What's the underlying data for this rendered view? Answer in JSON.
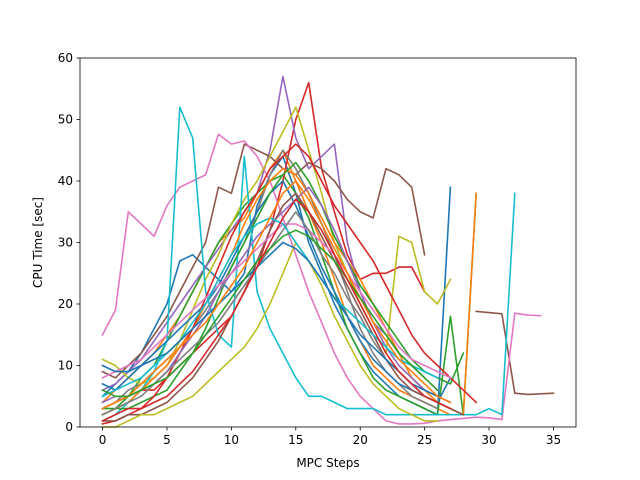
{
  "chart_data": {
    "type": "line",
    "title": "",
    "xlabel": "MPC Steps",
    "ylabel": "CPU Time [sec]",
    "xlim": [
      -1.75,
      36.75
    ],
    "ylim": [
      0,
      60
    ],
    "xticks": [
      0,
      5,
      10,
      15,
      20,
      25,
      30,
      35
    ],
    "yticks": [
      0,
      10,
      20,
      30,
      40,
      50,
      60
    ],
    "grid": false,
    "legend": "none",
    "palette": [
      "#1f77b4",
      "#ff7f0e",
      "#2ca02c",
      "#d62728",
      "#9467bd",
      "#8c564b",
      "#e377c2",
      "#7f7f7f",
      "#bcbd22",
      "#17becf"
    ],
    "series": [
      {
        "values": [
          5,
          7,
          9,
          12,
          16,
          20,
          27,
          28,
          26,
          24,
          22,
          25,
          36,
          41,
          44,
          38,
          30,
          25,
          20,
          16,
          12,
          9,
          7,
          5,
          4,
          3,
          2,
          39
        ]
      },
      {
        "values": [
          4,
          6,
          8,
          10,
          12,
          15,
          18,
          22,
          26,
          30,
          32,
          34,
          38,
          42,
          45,
          40,
          35,
          30,
          24,
          18,
          14,
          10,
          8,
          6,
          5,
          4,
          3,
          2
        ]
      },
      {
        "values": [
          2,
          3,
          5,
          8,
          10,
          14,
          18,
          22,
          26,
          30,
          33,
          36,
          38,
          40,
          41,
          38,
          34,
          28,
          22,
          16,
          12,
          8,
          6,
          5,
          4,
          3,
          2,
          18,
          2,
          38
        ]
      },
      {
        "values": [
          3,
          4,
          5,
          6,
          6,
          8,
          10,
          12,
          14,
          16,
          18,
          22,
          26,
          32,
          40,
          50,
          56,
          42,
          35,
          28,
          24,
          25,
          25,
          26,
          26,
          22
        ]
      },
      {
        "values": [
          6,
          7,
          9,
          11,
          14,
          17,
          20,
          23,
          26,
          29,
          32,
          35,
          38,
          45,
          57,
          47,
          42,
          44,
          46,
          30,
          22,
          17,
          15,
          12,
          10,
          8
        ]
      },
      {
        "values": [
          9,
          8,
          10,
          12,
          15,
          18,
          22,
          26,
          30,
          39,
          38,
          46,
          45,
          44,
          42,
          41,
          43,
          42,
          40,
          37,
          35,
          34,
          42,
          41,
          39,
          28,
          null,
          null,
          null,
          18.8,
          18.6,
          18.4,
          5.5,
          5.3,
          5.4,
          5.5
        ]
      },
      {
        "values": [
          15,
          19,
          35,
          33,
          31,
          36,
          39,
          40,
          41,
          47.6,
          46,
          46.5,
          44,
          40,
          34,
          28,
          22,
          17,
          12,
          8,
          5,
          3,
          1,
          0.5,
          0.5,
          0.6,
          1,
          1.2,
          1.4,
          1.6,
          1.5,
          1.2,
          18.5,
          18.2,
          18.1
        ]
      },
      {
        "values": [
          3,
          4,
          6,
          7,
          9,
          11,
          13,
          16,
          19,
          22,
          26,
          30,
          35,
          41,
          45,
          42,
          38,
          33,
          28,
          22,
          16,
          12,
          9,
          7,
          5,
          4,
          3
        ]
      },
      {
        "values": [
          11,
          10,
          8,
          7,
          8,
          10,
          14,
          19,
          24,
          28,
          33,
          37,
          40,
          44,
          48,
          52,
          45,
          38,
          30,
          25,
          20,
          16,
          12,
          31,
          30,
          22,
          20,
          24
        ]
      },
      {
        "values": [
          1,
          2,
          4,
          6,
          9,
          14,
          52,
          47,
          22,
          15,
          13,
          44,
          22,
          16,
          12,
          8,
          5,
          5,
          4,
          3,
          3,
          3,
          2,
          2,
          2,
          2,
          2,
          2,
          2,
          2,
          3,
          2,
          38
        ]
      },
      {
        "values": [
          7,
          6,
          8,
          10,
          12,
          14,
          16,
          18,
          20,
          23,
          27,
          31,
          35,
          38,
          40,
          36,
          31,
          26,
          22,
          18,
          14,
          11,
          9,
          7,
          6,
          5,
          4,
          8
        ]
      },
      {
        "values": [
          2,
          3,
          4,
          6,
          8,
          10,
          13,
          16,
          20,
          24,
          28,
          33,
          37,
          40,
          42,
          41,
          38,
          34,
          30,
          27,
          24,
          20,
          16,
          12,
          8,
          6,
          4,
          3,
          2,
          38
        ]
      },
      {
        "values": [
          3,
          3,
          3,
          4,
          5,
          6,
          9,
          12,
          16,
          21,
          26,
          30,
          34,
          38,
          41,
          43,
          40,
          36,
          31,
          27,
          23,
          20,
          17,
          14,
          11,
          9,
          8,
          7,
          12
        ]
      },
      {
        "values": [
          0.5,
          1,
          2,
          3,
          5,
          8,
          12,
          16,
          21,
          26,
          31,
          35,
          38,
          42,
          44,
          46,
          44,
          40,
          36,
          33,
          30,
          27,
          23,
          19,
          15,
          12,
          10,
          8,
          6,
          4
        ]
      },
      {
        "values": [
          4,
          5,
          5,
          6,
          7,
          9,
          12,
          15,
          18,
          22,
          25,
          28,
          31,
          33,
          35,
          37,
          39,
          36,
          32,
          27,
          22,
          17,
          13,
          10,
          8,
          6,
          5,
          4
        ]
      },
      {
        "values": [
          1,
          1,
          2,
          2,
          3,
          4,
          6,
          8,
          11,
          14,
          18,
          22,
          27,
          32,
          36,
          38,
          35,
          31,
          27,
          23,
          19,
          15,
          11,
          8,
          6,
          5,
          4,
          3,
          2
        ]
      },
      {
        "values": [
          8,
          9,
          10,
          11,
          13,
          15,
          17,
          19,
          21,
          23,
          25,
          27,
          29,
          31,
          33,
          33,
          32,
          30,
          28,
          25,
          22,
          19,
          16,
          13,
          11,
          10,
          9,
          8
        ]
      },
      {
        "values": [
          2,
          3,
          4,
          5,
          7,
          9,
          11,
          13,
          15,
          17,
          20,
          23,
          26,
          29,
          32,
          35,
          32,
          28,
          25,
          21,
          18,
          14,
          11,
          9,
          7,
          5,
          4,
          3
        ]
      },
      {
        "values": [
          0,
          0,
          1,
          2,
          2,
          3,
          4,
          5,
          7,
          9,
          11,
          13,
          16,
          20,
          25,
          30,
          27,
          23,
          18,
          14,
          10,
          7,
          5,
          3,
          2,
          1,
          1
        ]
      },
      {
        "values": [
          5,
          6,
          7,
          8,
          10,
          12,
          14,
          17,
          20,
          24,
          28,
          31,
          33,
          34,
          33,
          30,
          27,
          24,
          21,
          19,
          17,
          15,
          13,
          11,
          10,
          9,
          8
        ]
      },
      {
        "values": [
          10,
          9,
          9,
          10,
          11,
          12,
          14,
          16,
          18,
          20,
          22,
          24,
          26,
          28,
          30,
          29,
          27,
          24,
          21,
          18,
          15,
          13,
          11,
          9,
          7,
          6,
          5
        ]
      },
      {
        "values": [
          3,
          4,
          5,
          7,
          9,
          11,
          13,
          15,
          17,
          20,
          23,
          26,
          30,
          34,
          38,
          40,
          37,
          33,
          29,
          25,
          21,
          17,
          14,
          11,
          9,
          7,
          5,
          4
        ]
      },
      {
        "values": [
          6,
          5,
          5,
          6,
          7,
          8,
          10,
          12,
          15,
          18,
          21,
          24,
          27,
          29,
          31,
          32,
          31,
          29,
          27,
          24,
          21,
          18,
          15,
          12,
          10,
          8,
          6
        ]
      },
      {
        "values": [
          1,
          2,
          3,
          3,
          4,
          5,
          7,
          9,
          12,
          15,
          18,
          22,
          26,
          30,
          34,
          37,
          35,
          32,
          28,
          24,
          20,
          16,
          12,
          9,
          7,
          5,
          4,
          3
        ]
      }
    ]
  }
}
